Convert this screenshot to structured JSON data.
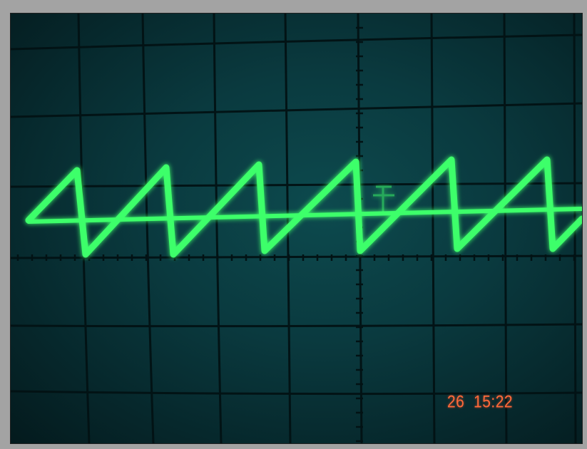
{
  "photo": {
    "subject": "oscilloscope-screen",
    "trace_color": "#3dff6a",
    "graticule_color": "#021214"
  },
  "timestamp": {
    "day": "26",
    "time": "15:22",
    "color": "#ff6a3a"
  }
}
